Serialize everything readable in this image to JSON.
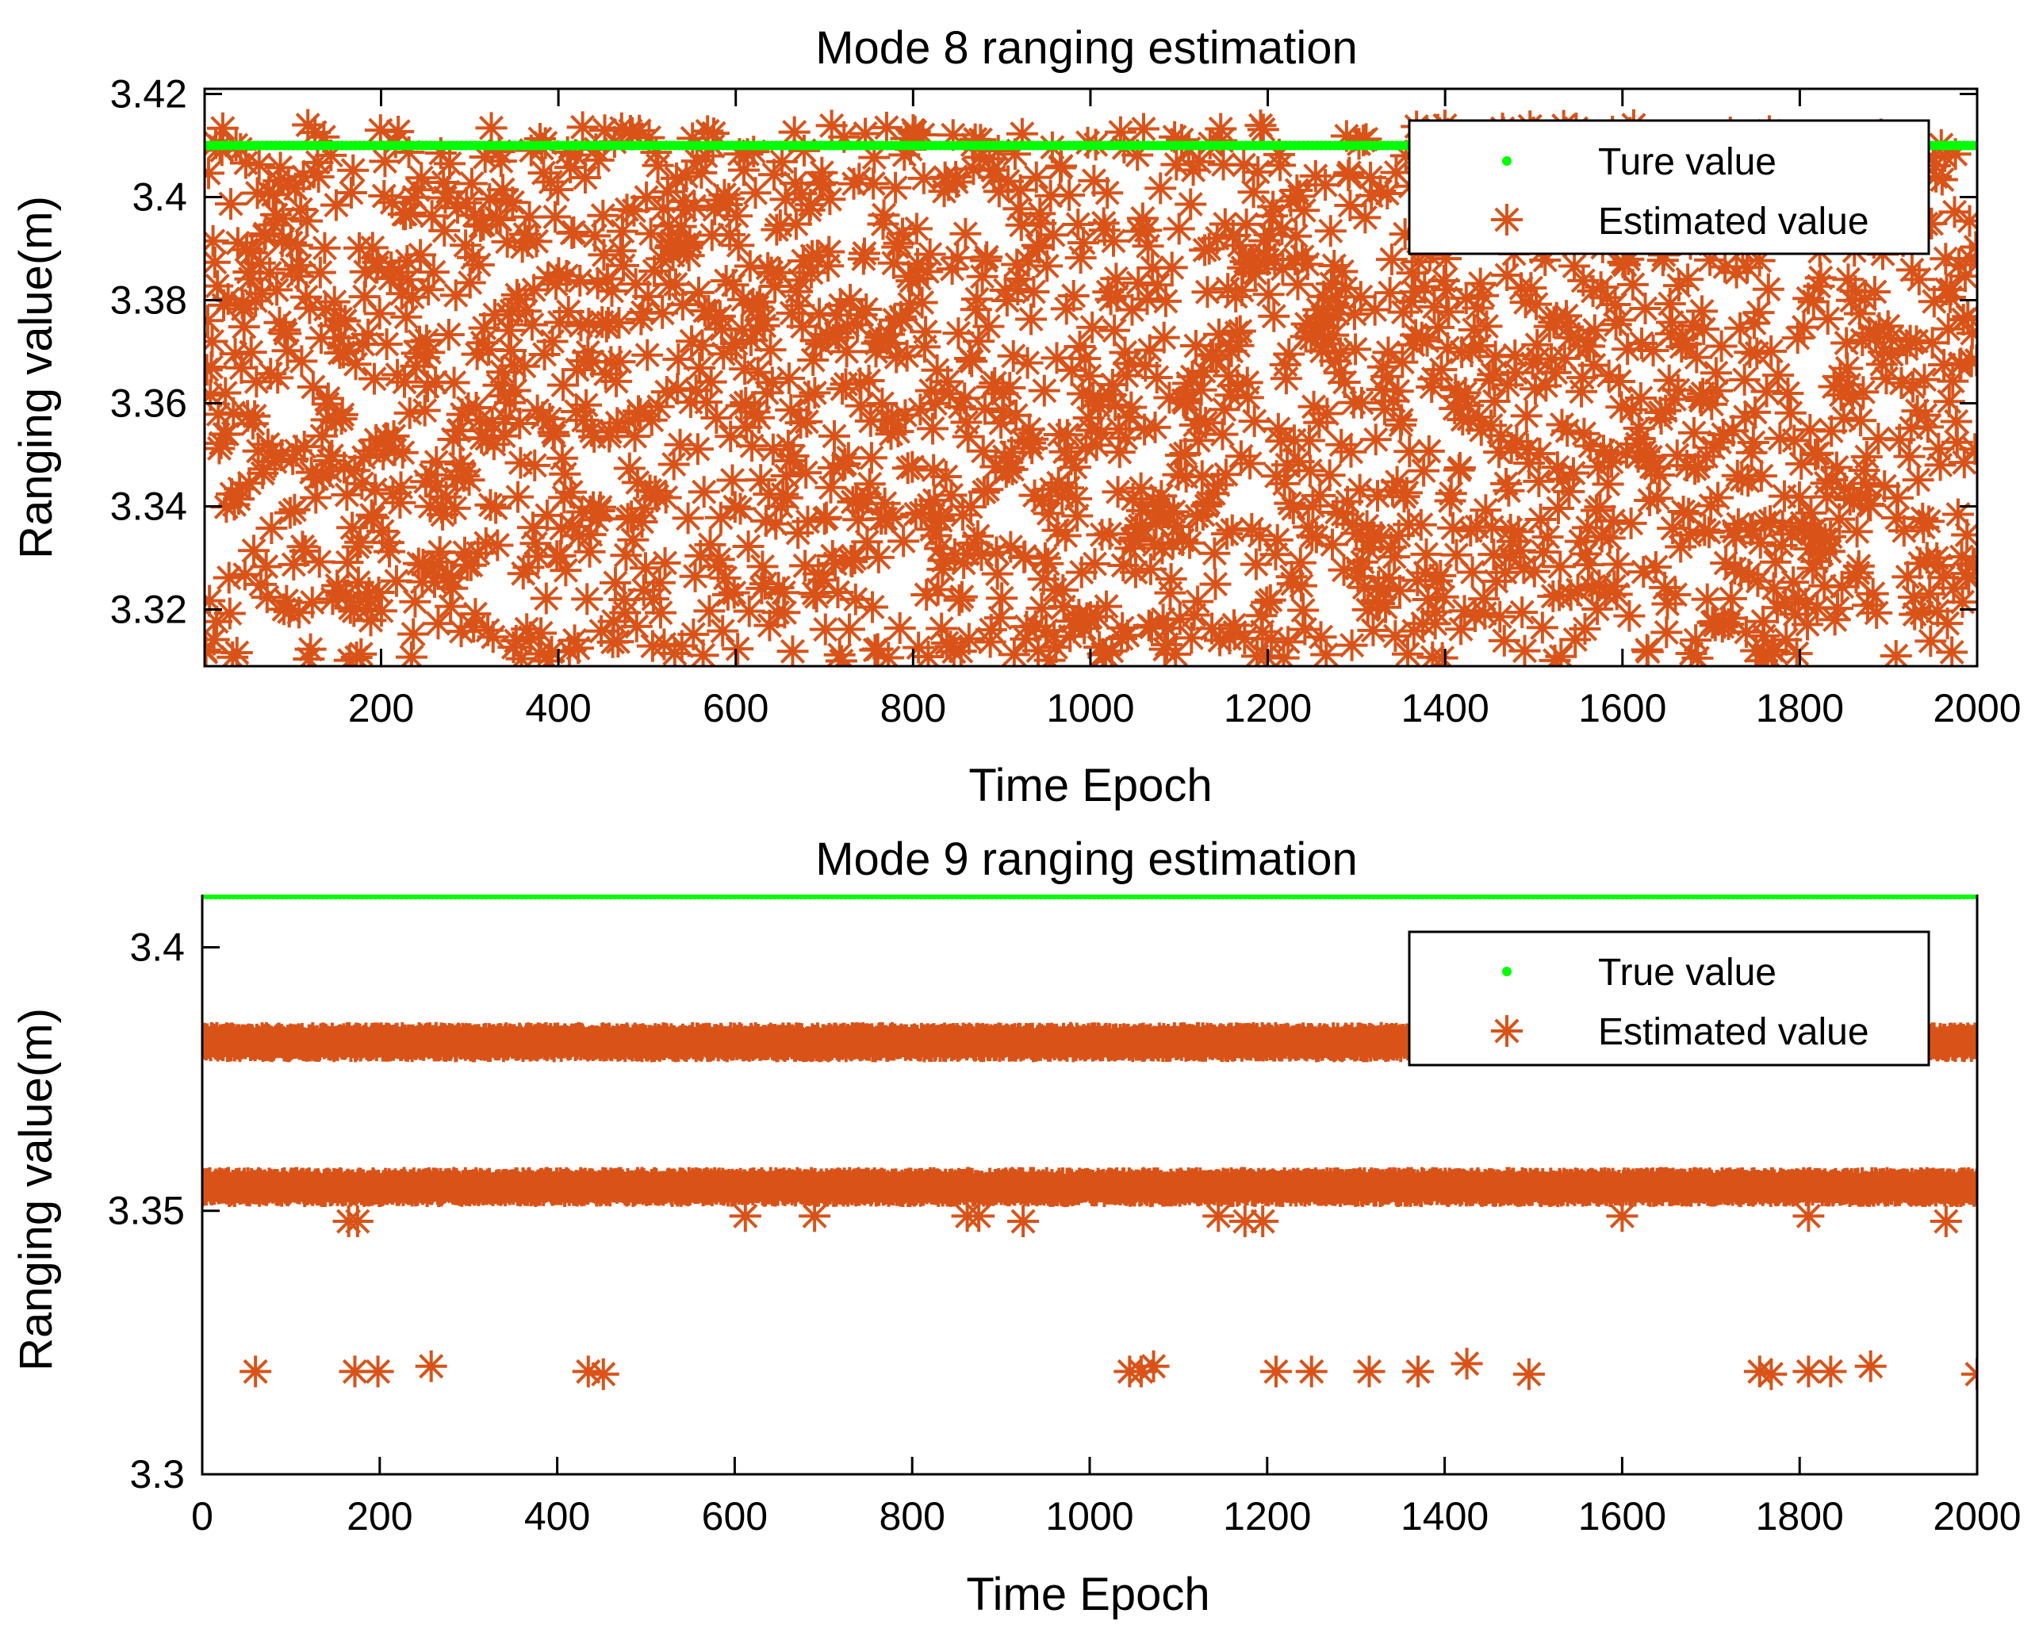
{
  "colors": {
    "true_value": "#00ff00",
    "estimated_value": "#d95319",
    "axes": "#000000",
    "background": "#ffffff"
  },
  "chart_data": [
    {
      "type": "scatter",
      "title": "Mode 8 ranging estimation",
      "xlabel": "Time Epoch",
      "ylabel": "Ranging value(m)",
      "xlim": [
        1,
        2000
      ],
      "ylim": [
        3.309,
        3.421
      ],
      "xticks": [
        200,
        400,
        600,
        800,
        1000,
        1200,
        1400,
        1600,
        1800,
        2000
      ],
      "yticks": [
        3.32,
        3.34,
        3.36,
        3.38,
        3.4,
        3.42
      ],
      "ytick_labels": [
        "3.32",
        "3.34",
        "3.36",
        "3.38",
        "3.4",
        "3.42"
      ],
      "grid": false,
      "legend_position": "top-right",
      "legend": [
        "Ture value",
        "Estimated value"
      ],
      "series": [
        {
          "name": "Ture value",
          "marker": "dot",
          "constant_y": 3.41,
          "x_range": [
            1,
            2000
          ]
        },
        {
          "name": "Estimated value",
          "marker": "asterisk",
          "points": 2000,
          "distribution": "uniform scatter between 3.31 and 3.414",
          "y_min": 3.31,
          "y_max": 3.414
        }
      ]
    },
    {
      "type": "scatter",
      "title": "Mode 9 ranging estimation",
      "xlabel": "Time Epoch",
      "ylabel": "Ranging value(m)",
      "xlim": [
        0,
        2000
      ],
      "ylim": [
        3.3,
        3.41
      ],
      "xticks": [
        0,
        200,
        400,
        600,
        800,
        1000,
        1200,
        1400,
        1600,
        1800,
        2000
      ],
      "yticks": [
        3.3,
        3.35,
        3.4
      ],
      "ytick_labels": [
        "3.3",
        "3.35",
        "3.4"
      ],
      "grid": false,
      "legend_position": "top-right",
      "legend": [
        "True value",
        "Estimated value"
      ],
      "series": [
        {
          "name": "True value",
          "marker": "dot",
          "constant_y": 3.41,
          "x_range": [
            0,
            2000
          ]
        },
        {
          "name": "Estimated value",
          "marker": "asterisk",
          "bands": [
            {
              "y": 3.382,
              "spread": 0.0008,
              "points": 2000
            },
            {
              "y": 3.3545,
              "spread": 0.0008,
              "points": 2000
            }
          ],
          "secondary_points": [
            {
              "x": 165,
              "y": 3.348
            },
            {
              "x": 175,
              "y": 3.348
            },
            {
              "x": 612,
              "y": 3.349
            },
            {
              "x": 690,
              "y": 3.349
            },
            {
              "x": 862,
              "y": 3.349
            },
            {
              "x": 875,
              "y": 3.349
            },
            {
              "x": 925,
              "y": 3.348
            },
            {
              "x": 1145,
              "y": 3.349
            },
            {
              "x": 1175,
              "y": 3.348
            },
            {
              "x": 1195,
              "y": 3.348
            },
            {
              "x": 1600,
              "y": 3.349
            },
            {
              "x": 1810,
              "y": 3.349
            },
            {
              "x": 1965,
              "y": 3.348
            }
          ],
          "outliers": [
            {
              "x": 60,
              "y": 3.3195
            },
            {
              "x": 172,
              "y": 3.3195
            },
            {
              "x": 198,
              "y": 3.3195
            },
            {
              "x": 258,
              "y": 3.3205
            },
            {
              "x": 435,
              "y": 3.3195
            },
            {
              "x": 452,
              "y": 3.319
            },
            {
              "x": 1045,
              "y": 3.3195
            },
            {
              "x": 1058,
              "y": 3.3195
            },
            {
              "x": 1072,
              "y": 3.3205
            },
            {
              "x": 1210,
              "y": 3.3195
            },
            {
              "x": 1250,
              "y": 3.3195
            },
            {
              "x": 1315,
              "y": 3.3195
            },
            {
              "x": 1370,
              "y": 3.3195
            },
            {
              "x": 1425,
              "y": 3.321
            },
            {
              "x": 1495,
              "y": 3.319
            },
            {
              "x": 1755,
              "y": 3.3195
            },
            {
              "x": 1768,
              "y": 3.319
            },
            {
              "x": 1810,
              "y": 3.3195
            },
            {
              "x": 1835,
              "y": 3.3195
            },
            {
              "x": 1880,
              "y": 3.3205
            },
            {
              "x": 2000,
              "y": 3.319
            }
          ]
        }
      ]
    }
  ]
}
